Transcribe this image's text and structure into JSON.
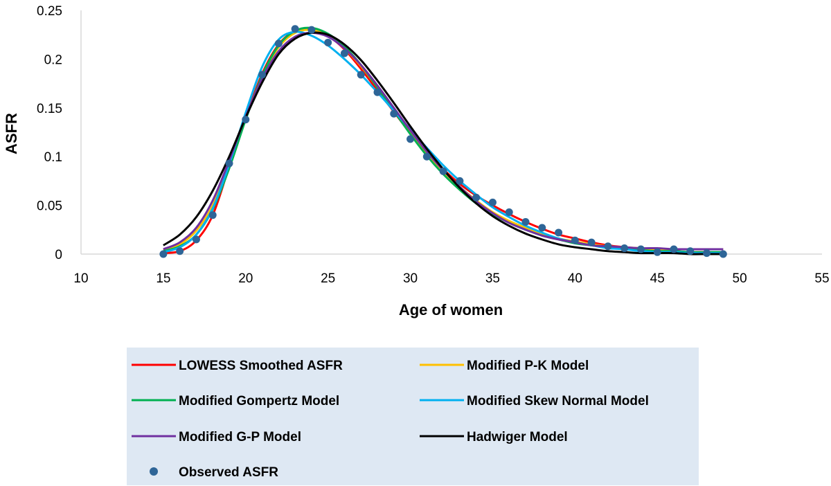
{
  "chart_data": {
    "type": "line",
    "xlabel": "Age of women",
    "ylabel": "ASFR",
    "xlim": [
      10,
      55
    ],
    "ylim": [
      0,
      0.25
    ],
    "xticks": [
      10,
      15,
      20,
      25,
      30,
      35,
      40,
      45,
      50,
      55
    ],
    "yticks": [
      0,
      0.05,
      0.1,
      0.15,
      0.2,
      0.25
    ],
    "ytick_labels": [
      "0",
      "0.05",
      "0.1",
      "0.15",
      "0.2",
      "0.25"
    ],
    "grid": false,
    "legend_position": "bottom",
    "x": [
      15,
      16,
      17,
      18,
      19,
      20,
      21,
      22,
      23,
      24,
      25,
      26,
      27,
      28,
      29,
      30,
      31,
      32,
      33,
      34,
      35,
      36,
      37,
      38,
      39,
      40,
      41,
      42,
      43,
      44,
      45,
      46,
      47,
      48,
      49
    ],
    "series": [
      {
        "name": "LOWESS Smoothed ASFR",
        "kind": "line",
        "color": "#ff0000",
        "values": [
          0.001,
          0.003,
          0.014,
          0.04,
          0.09,
          0.14,
          0.185,
          0.215,
          0.229,
          0.231,
          0.224,
          0.21,
          0.19,
          0.168,
          0.146,
          0.124,
          0.104,
          0.087,
          0.072,
          0.06,
          0.05,
          0.041,
          0.033,
          0.026,
          0.02,
          0.016,
          0.012,
          0.009,
          0.007,
          0.005,
          0.004,
          0.003,
          0.002,
          0.002,
          0.001
        ]
      },
      {
        "name": "Modified P-K Model",
        "kind": "line",
        "color": "#ffc000",
        "values": [
          0.004,
          0.01,
          0.024,
          0.05,
          0.093,
          0.14,
          0.182,
          0.212,
          0.227,
          0.23,
          0.224,
          0.211,
          0.193,
          0.171,
          0.148,
          0.125,
          0.104,
          0.085,
          0.069,
          0.055,
          0.043,
          0.034,
          0.027,
          0.021,
          0.016,
          0.013,
          0.01,
          0.008,
          0.007,
          0.006,
          0.005,
          0.005,
          0.005,
          0.005,
          0.005
        ]
      },
      {
        "name": "Modified Gompertz Model",
        "kind": "line",
        "color": "#00b050",
        "values": [
          0.003,
          0.008,
          0.02,
          0.046,
          0.088,
          0.138,
          0.183,
          0.214,
          0.229,
          0.232,
          0.226,
          0.213,
          0.194,
          0.171,
          0.147,
          0.123,
          0.101,
          0.082,
          0.066,
          0.052,
          0.041,
          0.032,
          0.025,
          0.019,
          0.015,
          0.011,
          0.009,
          0.007,
          0.005,
          0.004,
          0.003,
          0.003,
          0.002,
          0.002,
          0.002
        ]
      },
      {
        "name": "Modified Skew Normal Model",
        "kind": "line",
        "color": "#00b0f0",
        "values": [
          0.002,
          0.007,
          0.02,
          0.047,
          0.092,
          0.145,
          0.192,
          0.22,
          0.228,
          0.224,
          0.214,
          0.2,
          0.184,
          0.166,
          0.147,
          0.128,
          0.109,
          0.091,
          0.075,
          0.061,
          0.048,
          0.038,
          0.029,
          0.022,
          0.016,
          0.012,
          0.009,
          0.006,
          0.005,
          0.003,
          0.002,
          0.002,
          0.001,
          0.001,
          0.001
        ]
      },
      {
        "name": "Modified G-P Model",
        "kind": "line",
        "color": "#7030a0",
        "values": [
          0.005,
          0.012,
          0.027,
          0.055,
          0.096,
          0.141,
          0.18,
          0.208,
          0.223,
          0.227,
          0.223,
          0.211,
          0.194,
          0.173,
          0.15,
          0.127,
          0.105,
          0.086,
          0.069,
          0.054,
          0.042,
          0.032,
          0.025,
          0.019,
          0.015,
          0.012,
          0.009,
          0.008,
          0.007,
          0.006,
          0.006,
          0.005,
          0.005,
          0.005,
          0.005
        ]
      },
      {
        "name": "Hadwiger Model",
        "kind": "line",
        "color": "#000000",
        "values": [
          0.009,
          0.02,
          0.038,
          0.065,
          0.1,
          0.14,
          0.176,
          0.205,
          0.221,
          0.227,
          0.225,
          0.215,
          0.199,
          0.178,
          0.155,
          0.131,
          0.108,
          0.087,
          0.068,
          0.052,
          0.039,
          0.029,
          0.021,
          0.015,
          0.01,
          0.007,
          0.005,
          0.003,
          0.002,
          0.001,
          0.001,
          0.001,
          0.0,
          0.0,
          0.0
        ]
      },
      {
        "name": "Observed ASFR",
        "kind": "markers",
        "color": "#2e6597",
        "values": [
          0.0,
          0.003,
          0.015,
          0.04,
          0.093,
          0.138,
          0.184,
          0.216,
          0.231,
          0.23,
          0.217,
          0.206,
          0.184,
          0.166,
          0.144,
          0.118,
          0.1,
          0.085,
          0.075,
          0.058,
          0.053,
          0.043,
          0.033,
          0.027,
          0.022,
          0.014,
          0.012,
          0.008,
          0.006,
          0.005,
          0.002,
          0.005,
          0.003,
          0.001,
          0.0
        ]
      }
    ],
    "legend_order": [
      0,
      1,
      2,
      3,
      4,
      5,
      6
    ]
  }
}
